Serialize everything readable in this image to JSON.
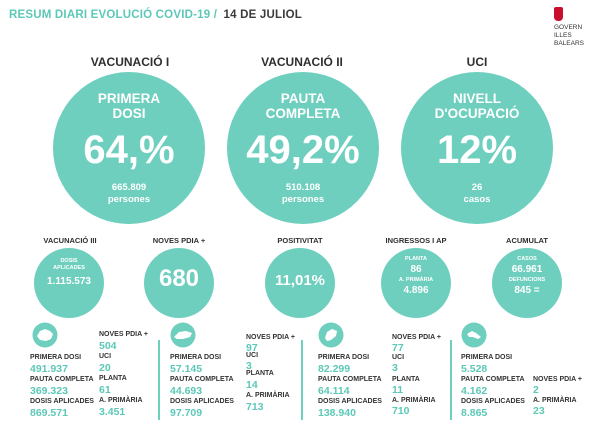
{
  "header": {
    "title": "RESUM DIARI EVOLUCIÓ COVID-19 /",
    "date": "14 DE JULIOL",
    "logo_lines": [
      "GOVERN",
      "ILLES",
      "BALEARS"
    ]
  },
  "big_circles": [
    {
      "heading": "VACUNACIÓ I",
      "line1": "PRIMERA",
      "line2": "DOSI",
      "value": "64,%",
      "sub1": "665.809",
      "sub2": "persones"
    },
    {
      "heading": "VACUNACIÓ II",
      "line1": "PAUTA",
      "line2": "COMPLETA",
      "value": "49,2%",
      "sub1": "510.108",
      "sub2": "persones"
    },
    {
      "heading": "UCI",
      "line1": "NIVELL",
      "line2": "D'OCUPACIÓ",
      "value": "12%",
      "sub1": "26",
      "sub2": "casos"
    }
  ],
  "small_circles": [
    {
      "heading": "VACUNACIÓ III",
      "l1": "DOSIS",
      "l2": "APLICADES",
      "value": "1.115.573"
    },
    {
      "heading": "NOVES PDIA +",
      "value": "680"
    },
    {
      "heading": "POSITIVITAT",
      "value": "11,01%"
    },
    {
      "heading": "INGRESSOS I AP",
      "l1": "PLANTA",
      "v1": "86",
      "l2": "A. PRIMÀRIA",
      "v2": "4.896"
    },
    {
      "heading": "ACUMULAT",
      "l1": "CASOS",
      "v1": "66.961",
      "l2": "DEFUNCIONS",
      "v2": "845 ="
    }
  ],
  "islands": [
    {
      "name": "mallorca",
      "primera_label": "PRIMERA DOSI",
      "primera": "491.937",
      "pauta_label": "PAUTA COMPLETA",
      "pauta": "369.323",
      "dosis_label": "DOSIS APLICADES",
      "dosis": "869.571",
      "pdia_label": "NOVES PDIA +",
      "pdia": "504",
      "uci_label": "UCI",
      "uci": "20",
      "planta_label": "PLANTA",
      "planta": "61",
      "ap_label": "A. PRIMÀRIA",
      "ap": "3.451"
    },
    {
      "name": "menorca",
      "primera_label": "PRIMERA DOSI",
      "primera": "57.145",
      "pauta_label": "PAUTA COMPLETA",
      "pauta": "44.693",
      "dosis_label": "DOSIS APLICADES",
      "dosis": "97.709",
      "pdia_label": "NOVES PDIA +",
      "pdia": "97",
      "uci_label": "UCI",
      "uci": "3",
      "planta_label": "PLANTA",
      "planta": "14",
      "ap_label": "A. PRIMÀRIA",
      "ap": "713"
    },
    {
      "name": "eivissa",
      "primera_label": "PRIMERA DOSI",
      "primera": "82.299",
      "pauta_label": "PAUTA COMPLETA",
      "pauta": "64.114",
      "dosis_label": "DOSIS APLICADES",
      "dosis": "138.940",
      "pdia_label": "NOVES PDIA +",
      "pdia": "77",
      "uci_label": "UCI",
      "uci": "3",
      "planta_label": "PLANTA",
      "planta": "11",
      "ap_label": "A. PRIMÀRIA",
      "ap": "710"
    },
    {
      "name": "formentera",
      "primera_label": "PRIMERA DOSI",
      "primera": "5.528",
      "pauta_label": "PAUTA COMPLETA",
      "pauta": "4.162",
      "dosis_label": "DOSIS APLICADES",
      "dosis": "8.865",
      "pdia_label": "NOVES PDIA +",
      "pdia": "2",
      "ap_label": "A. PRIMÀRIA",
      "ap": "23"
    }
  ],
  "colors": {
    "accent": "#5cc8b7",
    "circle": "#6fcfbf",
    "text": "#333333",
    "logo_red": "#c8102e"
  }
}
